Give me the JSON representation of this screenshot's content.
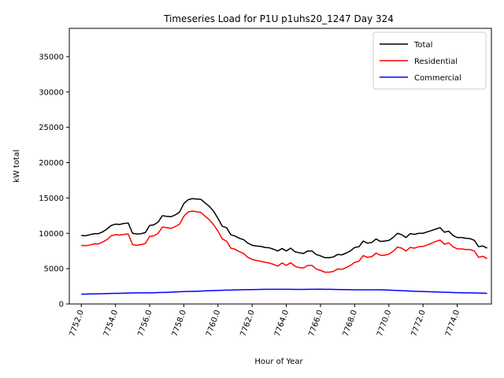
{
  "chart_data": {
    "type": "line",
    "title": "Timeseries Load for P1U p1uhs20_1247  Day 324",
    "xlabel": "Hour of Year",
    "ylabel": "kW total",
    "xlim": [
      7751.3,
      7776.0
    ],
    "ylim": [
      0,
      39000
    ],
    "xticks": [
      7752,
      7754,
      7756,
      7758,
      7760,
      7762,
      7764,
      7766,
      7768,
      7770,
      7772,
      7774
    ],
    "xtick_labels": [
      "7752.0",
      "7754.0",
      "7756.0",
      "7758.0",
      "7760.0",
      "7762.0",
      "7764.0",
      "7766.0",
      "7768.0",
      "7770.0",
      "7772.0",
      "7774.0"
    ],
    "yticks": [
      0,
      5000,
      10000,
      15000,
      20000,
      25000,
      30000,
      35000
    ],
    "ytick_labels": [
      "0",
      "5000",
      "10000",
      "15000",
      "20000",
      "25000",
      "30000",
      "35000"
    ],
    "legend_position": "top-right",
    "x": [
      7752.0,
      7752.25,
      7752.5,
      7752.75,
      7753.0,
      7753.25,
      7753.5,
      7753.75,
      7754.0,
      7754.25,
      7754.5,
      7754.75,
      7755.0,
      7755.25,
      7755.5,
      7755.75,
      7756.0,
      7756.25,
      7756.5,
      7756.75,
      7757.0,
      7757.25,
      7757.5,
      7757.75,
      7758.0,
      7758.25,
      7758.5,
      7758.75,
      7759.0,
      7759.25,
      7759.5,
      7759.75,
      7760.0,
      7760.25,
      7760.5,
      7760.75,
      7761.0,
      7761.25,
      7761.5,
      7761.75,
      7762.0,
      7762.25,
      7762.5,
      7762.75,
      7763.0,
      7763.25,
      7763.5,
      7763.75,
      7764.0,
      7764.25,
      7764.5,
      7764.75,
      7765.0,
      7765.25,
      7765.5,
      7765.75,
      7766.0,
      7766.25,
      7766.5,
      7766.75,
      7767.0,
      7767.25,
      7767.5,
      7767.75,
      7768.0,
      7768.25,
      7768.5,
      7768.75,
      7769.0,
      7769.25,
      7769.5,
      7769.75,
      7770.0,
      7770.25,
      7770.5,
      7770.75,
      7771.0,
      7771.25,
      7771.5,
      7771.75,
      7772.0,
      7772.25,
      7772.5,
      7772.75,
      7773.0,
      7773.25,
      7773.5,
      7773.75,
      7774.0,
      7774.25,
      7774.5,
      7774.75,
      7775.0,
      7775.25,
      7775.5,
      7775.75
    ],
    "series": [
      {
        "name": "Total",
        "color": "#000000",
        "values": [
          9700,
          9650,
          9800,
          9950,
          9950,
          10200,
          10600,
          11100,
          11300,
          11250,
          11400,
          11450,
          10000,
          9900,
          9950,
          10100,
          11100,
          11200,
          11600,
          12500,
          12400,
          12350,
          12600,
          13000,
          14200,
          14750,
          14900,
          14850,
          14800,
          14300,
          13800,
          13100,
          12100,
          11000,
          10800,
          9800,
          9600,
          9300,
          9100,
          8600,
          8300,
          8200,
          8150,
          8000,
          7950,
          7750,
          7500,
          7850,
          7500,
          7900,
          7400,
          7250,
          7150,
          7500,
          7500,
          7000,
          6800,
          6550,
          6550,
          6650,
          7000,
          6950,
          7200,
          7500,
          8000,
          8100,
          8900,
          8600,
          8700,
          9200,
          8850,
          8900,
          9000,
          9400,
          10000,
          9800,
          9400,
          9950,
          9850,
          10000,
          10000,
          10200,
          10400,
          10600,
          10800,
          10150,
          10300,
          9700,
          9400,
          9400,
          9300,
          9250,
          9000,
          8100,
          8200,
          7900
        ]
      },
      {
        "name": "Residential",
        "color": "#ff0000",
        "values": [
          8300,
          8250,
          8350,
          8500,
          8500,
          8750,
          9100,
          9650,
          9800,
          9750,
          9850,
          9900,
          8400,
          8300,
          8400,
          8550,
          9550,
          9650,
          10000,
          10900,
          10800,
          10700,
          10950,
          11300,
          12400,
          13000,
          13150,
          13050,
          12950,
          12400,
          11900,
          11200,
          10300,
          9200,
          8900,
          7900,
          7750,
          7400,
          7150,
          6600,
          6300,
          6150,
          6050,
          5900,
          5800,
          5600,
          5350,
          5800,
          5450,
          5850,
          5350,
          5150,
          5100,
          5450,
          5450,
          4950,
          4750,
          4500,
          4500,
          4600,
          4950,
          4900,
          5150,
          5450,
          5900,
          6050,
          6850,
          6600,
          6700,
          7200,
          6900,
          6900,
          7050,
          7450,
          8050,
          7900,
          7500,
          8000,
          7900,
          8100,
          8150,
          8350,
          8600,
          8850,
          9050,
          8450,
          8650,
          8100,
          7800,
          7800,
          7700,
          7700,
          7500,
          6600,
          6750,
          6400
        ]
      },
      {
        "name": "Commercial",
        "color": "#0000ff",
        "values": [
          1400,
          1400,
          1420,
          1430,
          1440,
          1450,
          1470,
          1490,
          1500,
          1510,
          1530,
          1550,
          1560,
          1570,
          1570,
          1580,
          1580,
          1590,
          1610,
          1630,
          1650,
          1670,
          1700,
          1720,
          1750,
          1770,
          1790,
          1800,
          1820,
          1850,
          1880,
          1900,
          1920,
          1940,
          1960,
          1970,
          1990,
          2000,
          2020,
          2030,
          2040,
          2050,
          2060,
          2070,
          2080,
          2080,
          2080,
          2080,
          2080,
          2070,
          2060,
          2060,
          2060,
          2070,
          2080,
          2090,
          2090,
          2080,
          2070,
          2060,
          2050,
          2040,
          2030,
          2020,
          2010,
          2000,
          2000,
          2000,
          2010,
          2010,
          2000,
          1980,
          1960,
          1940,
          1910,
          1880,
          1850,
          1830,
          1800,
          1780,
          1760,
          1740,
          1720,
          1700,
          1680,
          1660,
          1640,
          1620,
          1600,
          1590,
          1580,
          1570,
          1560,
          1540,
          1530,
          1510
        ]
      }
    ]
  }
}
